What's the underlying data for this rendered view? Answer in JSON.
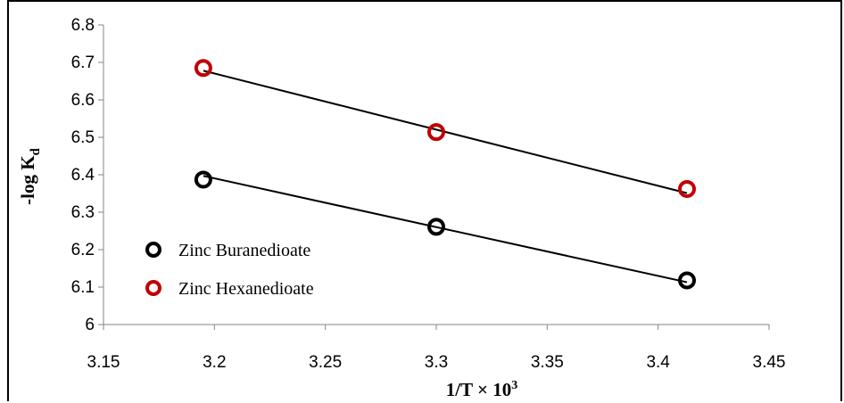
{
  "chart_data": {
    "type": "scatter",
    "xlabel_main": "1/T × 10",
    "xlabel_sup": "3",
    "ylabel_main": "-log K",
    "ylabel_sub": "d",
    "xlim": [
      3.15,
      3.45
    ],
    "ylim": [
      6.0,
      6.8
    ],
    "xticks": [
      "3.15",
      "3.2",
      "3.25",
      "3.3",
      "3.35",
      "3.4",
      "3.45"
    ],
    "yticks": [
      "6",
      "6.1",
      "6.2",
      "6.3",
      "6.4",
      "6.5",
      "6.6",
      "6.7",
      "6.8"
    ],
    "legend_position": "lower-left",
    "series": [
      {
        "name": "Zinc Buranedioate",
        "color": "#000000",
        "x": [
          3.195,
          3.3,
          3.413
        ],
        "y": [
          6.387,
          6.261,
          6.118
        ],
        "trend": [
          [
            3.195,
            6.397
          ],
          [
            3.413,
            6.113
          ]
        ]
      },
      {
        "name": "Zinc Hexanedioate",
        "color": "#c00000",
        "x": [
          3.195,
          3.3,
          3.413
        ],
        "y": [
          6.685,
          6.514,
          6.362
        ],
        "trend": [
          [
            3.195,
            6.678
          ],
          [
            3.413,
            6.351
          ]
        ]
      }
    ]
  }
}
